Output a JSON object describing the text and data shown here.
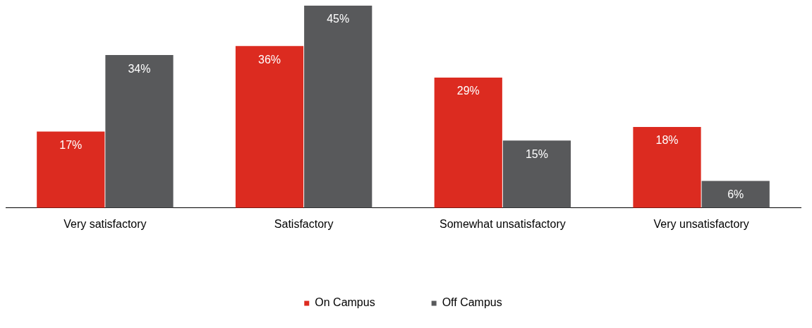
{
  "chart_data": {
    "type": "bar",
    "categories": [
      "Very satisfactory",
      "Satisfactory",
      "Somewhat unsatisfactory",
      "Very unsatisfactory"
    ],
    "series": [
      {
        "name": "On Campus",
        "color": "#dc2b20",
        "values": [
          17,
          36,
          29,
          18
        ],
        "value_labels": [
          "17%",
          "36%",
          "29%",
          "18%"
        ]
      },
      {
        "name": "Off Campus",
        "color": "#58595b",
        "values": [
          34,
          45,
          15,
          6
        ],
        "value_labels": [
          "34%",
          "45%",
          "15%",
          "6%"
        ]
      }
    ],
    "legend": "bottom"
  }
}
